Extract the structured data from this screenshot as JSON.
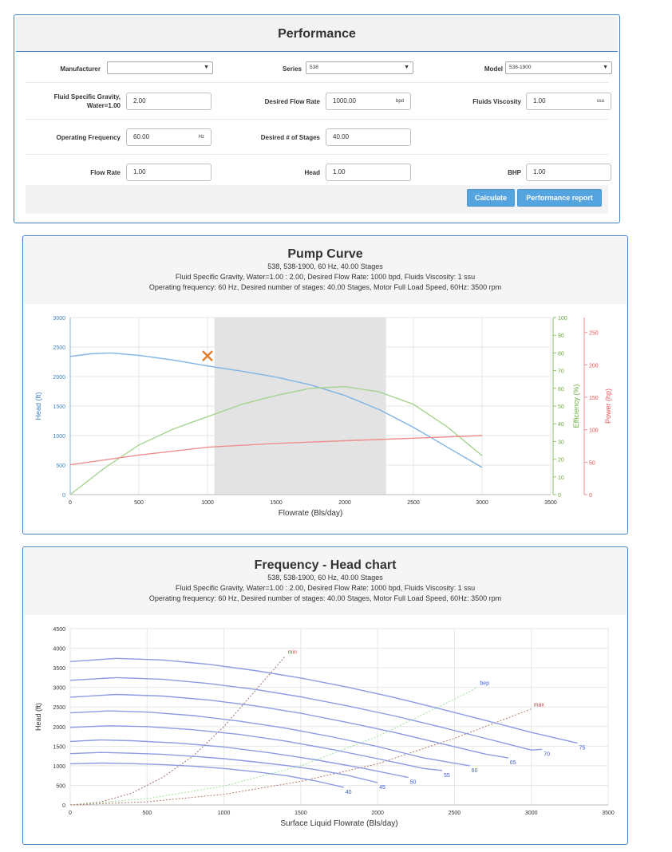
{
  "performance": {
    "title": "Performance",
    "manufacturer": {
      "label": "Manufacturer",
      "value": ""
    },
    "series": {
      "label": "Series",
      "value": "538"
    },
    "model": {
      "label": "Model",
      "value": "538-1900"
    },
    "sg": {
      "label_line1": "Fluid Specific Gravity,",
      "label_line2": "Water=1.00",
      "value": "2.00"
    },
    "desired_flow": {
      "label": "Desired Flow Rate",
      "value": "1000.00",
      "unit": "bpd"
    },
    "viscosity": {
      "label": "Fluids Viscosity",
      "value": "1.00",
      "unit": "ssu"
    },
    "frequency": {
      "label": "Operating Frequency",
      "value": "60.00",
      "unit": "Hz"
    },
    "stages": {
      "label": "Desired # of Stages",
      "value": "40.00"
    },
    "flow_rate": {
      "label": "Flow Rate",
      "value": "1.00"
    },
    "head": {
      "label": "Head",
      "value": "1.00"
    },
    "bhp": {
      "label": "BHP",
      "value": "1.00"
    },
    "calculate_label": "Calculate",
    "report_label": "Performance report"
  },
  "pump_curve": {
    "title": "Pump Curve",
    "sub1": "538, 538-1900, 60 Hz, 40.00 Stages",
    "sub2": "Fluid Specific Gravity, Water=1.00 : 2.00, Desired Flow Rate: 1000 bpd, Fluids Viscosity: 1 ssu",
    "sub3": "Operating frequency: 60 Hz, Desired number of stages: 40.00 Stages, Motor Full Load Speed, 60Hz: 3500 rpm"
  },
  "freq_head": {
    "title": "Frequency - Head chart",
    "sub1": "538, 538-1900, 60 Hz, 40.00 Stages",
    "sub2": "Fluid Specific Gravity, Water=1.00 : 2.00, Desired Flow Rate: 1000 bpd, Fluids Viscosity: 1 ssu",
    "sub3": "Operating frequency: 60 Hz, Desired number of stages: 40.00 Stages, Motor Full Load Speed, 60Hz: 3500 rpm"
  },
  "colors": {
    "head": "#7fb3e6",
    "efficiency": "#a6d38f",
    "power": "#ef8e8e",
    "freq": "#8c9be3",
    "min": "#a06f6f",
    "bep": "#9fe39b",
    "max": "#b07a6a",
    "marker": "#e07d2c"
  },
  "chart_data": [
    {
      "type": "line",
      "title": "Pump Curve",
      "xlabel": "Flowrate (Bls/day)",
      "xlim": [
        0,
        3500
      ],
      "xticks": [
        0,
        500,
        1000,
        1500,
        2000,
        2500,
        3000,
        3500
      ],
      "axes": {
        "head": {
          "label": "Head (ft)",
          "ylim": [
            0,
            3000
          ],
          "ticks": [
            0,
            500,
            1000,
            1500,
            2000,
            2500,
            3000
          ]
        },
        "efficiency": {
          "label": "Efficiency (%)",
          "ylim": [
            0,
            100
          ],
          "ticks": [
            0,
            10,
            20,
            30,
            40,
            50,
            60,
            70,
            80,
            90,
            100
          ]
        },
        "power": {
          "label": "Power (hp)",
          "ylim": [
            0,
            273
          ],
          "ticks": [
            0,
            50,
            100,
            150,
            200,
            250
          ]
        }
      },
      "operating_range": [
        1050,
        2300
      ],
      "operating_point": {
        "x": 1000,
        "y": 2350
      },
      "series": [
        {
          "name": "Head",
          "axis": "head",
          "x": [
            0,
            150,
            300,
            500,
            750,
            1000,
            1250,
            1500,
            1750,
            2000,
            2250,
            2500,
            2750,
            3000
          ],
          "y": [
            2340,
            2385,
            2400,
            2360,
            2280,
            2180,
            2090,
            1990,
            1860,
            1680,
            1440,
            1140,
            800,
            460
          ]
        },
        {
          "name": "Efficiency",
          "axis": "efficiency",
          "x": [
            0,
            250,
            500,
            750,
            1000,
            1250,
            1500,
            1750,
            2000,
            2250,
            2500,
            2750,
            3000
          ],
          "y": [
            0,
            15,
            28,
            37,
            44,
            51,
            56,
            60,
            61,
            58,
            51,
            38,
            22
          ]
        },
        {
          "name": "Power",
          "axis": "power",
          "x": [
            0,
            500,
            1000,
            1500,
            2000,
            2500,
            3000
          ],
          "y": [
            46,
            61,
            73,
            79,
            83,
            87,
            91
          ]
        }
      ]
    },
    {
      "type": "line",
      "title": "Frequency - Head chart",
      "xlabel": "Surface Liquid Flowrate (Bls/day)",
      "ylabel": "Head (ft)",
      "xlim": [
        0,
        3500
      ],
      "ylim": [
        0,
        4500
      ],
      "xticks": [
        0,
        500,
        1000,
        1500,
        2000,
        2500,
        3000,
        3500
      ],
      "yticks": [
        0,
        500,
        1000,
        1500,
        2000,
        2500,
        3000,
        3500,
        4000,
        4500
      ],
      "series": [
        {
          "name": "40",
          "x": [
            0,
            200,
            400,
            600,
            800,
            1000,
            1200,
            1400,
            1600,
            1780
          ],
          "y": [
            1050,
            1070,
            1055,
            1030,
            990,
            930,
            850,
            750,
            610,
            450
          ]
        },
        {
          "name": "45",
          "x": [
            0,
            200,
            400,
            600,
            800,
            1000,
            1200,
            1400,
            1600,
            1800,
            2000
          ],
          "y": [
            1310,
            1340,
            1320,
            1290,
            1240,
            1180,
            1100,
            1010,
            900,
            760,
            570
          ]
        },
        {
          "name": "50",
          "x": [
            0,
            200,
            400,
            700,
            1000,
            1300,
            1600,
            1900,
            2200
          ],
          "y": [
            1620,
            1660,
            1640,
            1580,
            1480,
            1330,
            1150,
            940,
            700
          ]
        },
        {
          "name": "55",
          "x": [
            0,
            250,
            500,
            800,
            1100,
            1400,
            1700,
            2000,
            2300,
            2420
          ],
          "y": [
            1980,
            2020,
            2000,
            1920,
            1800,
            1630,
            1420,
            1180,
            930,
            880
          ]
        },
        {
          "name": "60",
          "x": [
            0,
            250,
            500,
            800,
            1100,
            1400,
            1700,
            2000,
            2300,
            2600
          ],
          "y": [
            2350,
            2400,
            2370,
            2280,
            2140,
            1960,
            1740,
            1490,
            1200,
            1000
          ]
        },
        {
          "name": "65",
          "x": [
            0,
            300,
            600,
            900,
            1200,
            1500,
            1800,
            2100,
            2400,
            2700,
            2850
          ],
          "y": [
            2750,
            2820,
            2780,
            2680,
            2530,
            2340,
            2110,
            1860,
            1580,
            1300,
            1200
          ]
        },
        {
          "name": "70",
          "x": [
            0,
            300,
            600,
            900,
            1200,
            1500,
            1800,
            2100,
            2400,
            2700,
            3000,
            3070
          ],
          "y": [
            3180,
            3250,
            3210,
            3100,
            2950,
            2760,
            2530,
            2280,
            2000,
            1700,
            1400,
            1420
          ]
        },
        {
          "name": "75",
          "x": [
            0,
            300,
            600,
            900,
            1200,
            1500,
            1800,
            2100,
            2400,
            2700,
            3000,
            3300
          ],
          "y": [
            3660,
            3740,
            3700,
            3590,
            3430,
            3240,
            3010,
            2750,
            2460,
            2160,
            1850,
            1580
          ]
        }
      ],
      "envelopes": [
        {
          "name": "min",
          "x": [
            0,
            200,
            400,
            600,
            800,
            1000,
            1200,
            1400
          ],
          "y": [
            0,
            80,
            300,
            700,
            1250,
            2000,
            2900,
            3800
          ]
        },
        {
          "name": "bep",
          "x": [
            0,
            500,
            1000,
            1500,
            2000,
            2500,
            2650
          ],
          "y": [
            0,
            160,
            480,
            1000,
            1750,
            2700,
            3000
          ]
        },
        {
          "name": "max",
          "x": [
            0,
            500,
            1000,
            1500,
            2000,
            2500,
            3000
          ],
          "y": [
            0,
            80,
            270,
            600,
            1050,
            1700,
            2450
          ]
        }
      ]
    }
  ]
}
